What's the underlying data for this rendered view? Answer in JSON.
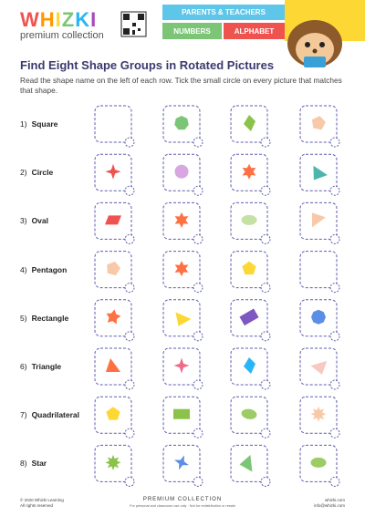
{
  "header": {
    "logo": "WHIZKI",
    "tagline": "premium collection",
    "tabs": [
      "PARENTS & TEACHERS",
      "NUMBERS",
      "ALPHABET"
    ]
  },
  "title": "Find Eight Shape Groups in Rotated Pictures",
  "instructions": "Read the shape name on the left of each row. Tick the small circle on every picture that matches that shape.",
  "rows": [
    {
      "number": "1)",
      "name": "Square"
    },
    {
      "number": "2)",
      "name": "Circle"
    },
    {
      "number": "3)",
      "name": "Oval"
    },
    {
      "number": "4)",
      "name": "Pentagon"
    },
    {
      "number": "5)",
      "name": "Rectangle"
    },
    {
      "number": "6)",
      "name": "Triangle"
    },
    {
      "number": "7)",
      "name": "Quadrilateral"
    },
    {
      "number": "8)",
      "name": "Star"
    }
  ],
  "footer": {
    "copyright": "© 2020 Whizki Learning",
    "rights": "All rights reserved",
    "collection": "PREMIUM COLLECTION",
    "note": "For personal and classroom use only · Not for redistribution or resale",
    "site": "whizki.com",
    "email": "info@whizki.com"
  }
}
